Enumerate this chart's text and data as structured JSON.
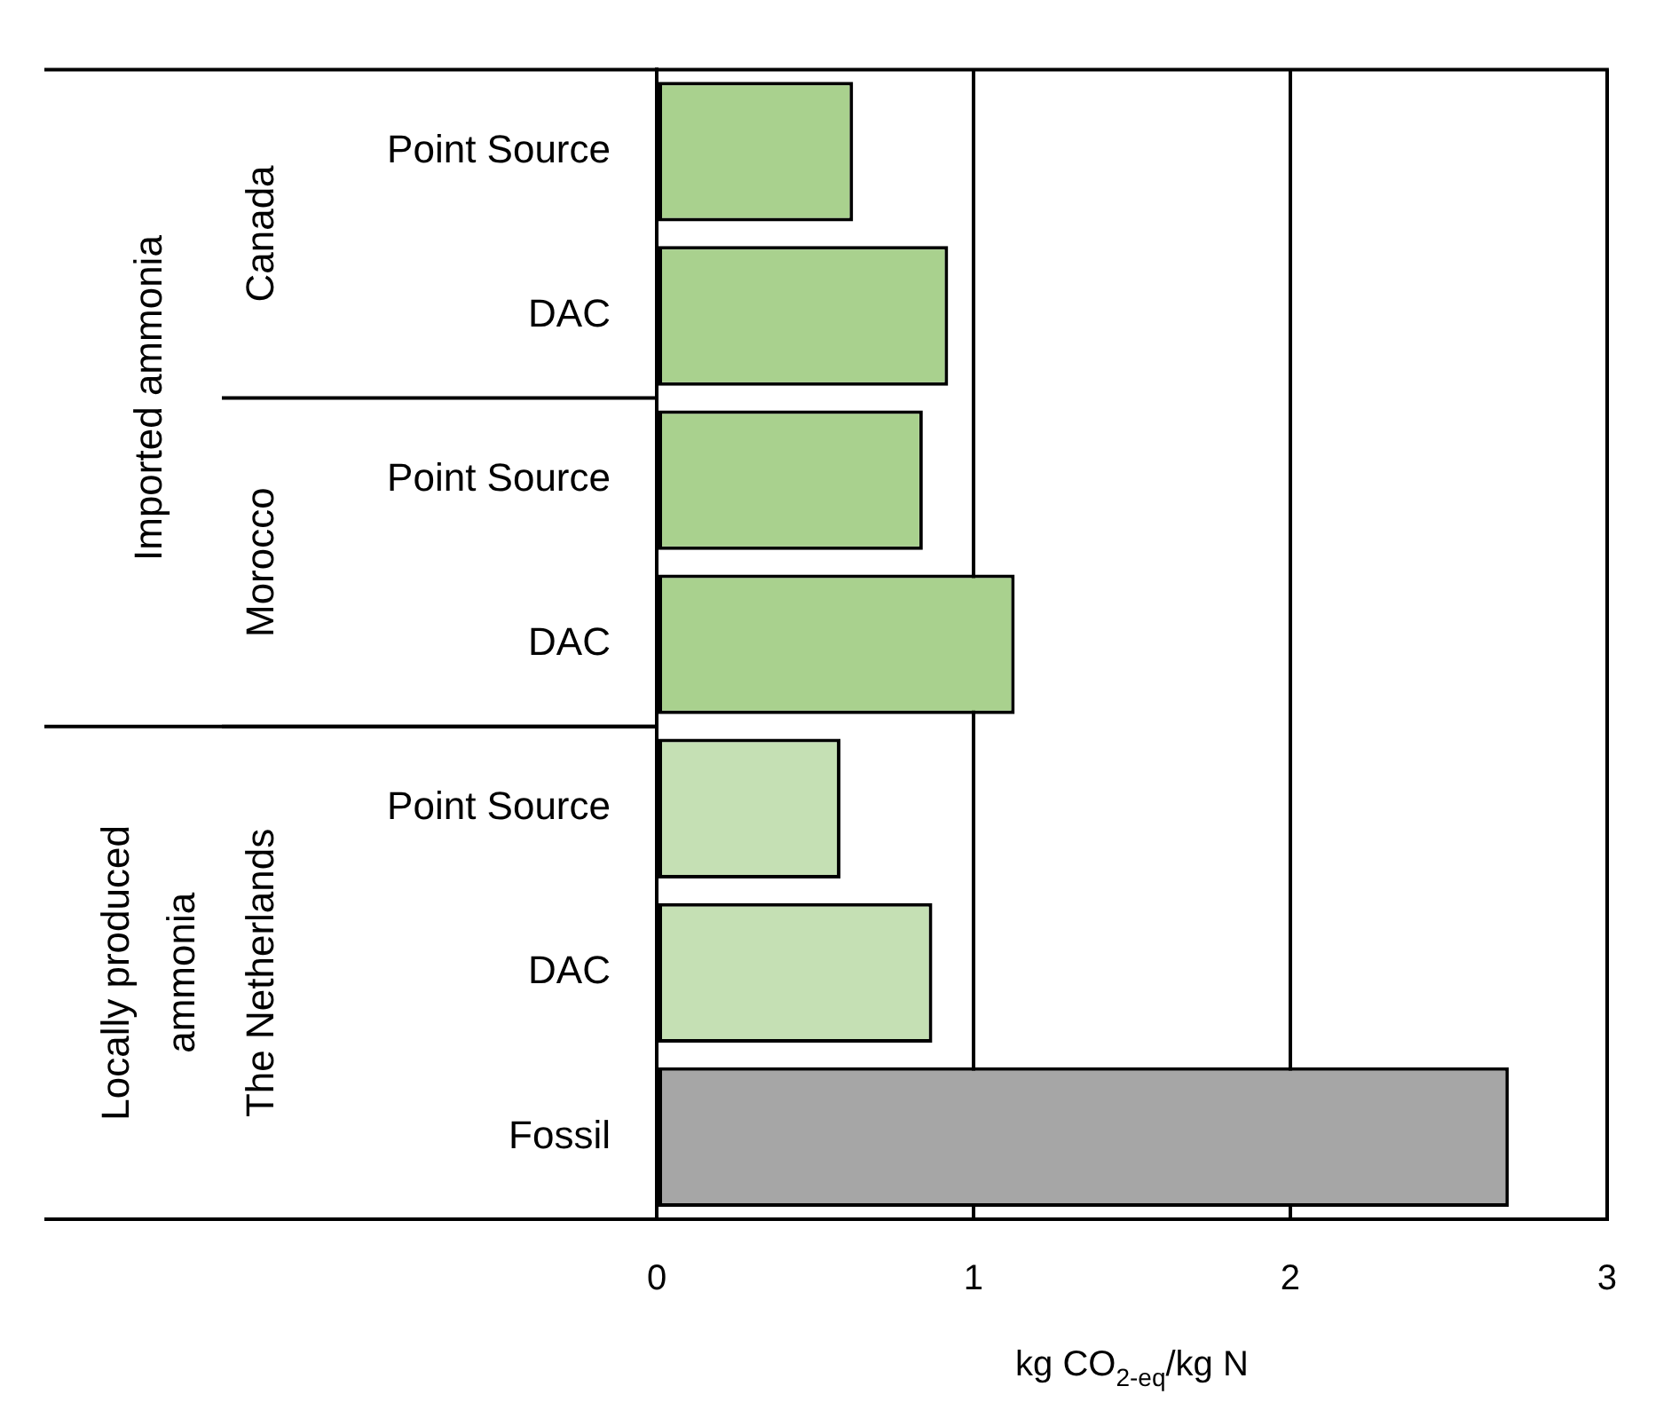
{
  "chart_data": {
    "type": "bar",
    "orientation": "horizontal",
    "categories": [
      "Point Source",
      "DAC",
      "Point Source",
      "DAC",
      "Point Source",
      "DAC",
      "Fossil"
    ],
    "values": [
      0.62,
      0.92,
      0.84,
      1.13,
      0.58,
      0.87,
      2.69
    ],
    "colors": [
      "#a9d18e",
      "#a9d18e",
      "#a9d18e",
      "#a9d18e",
      "#c5e0b4",
      "#c5e0b4",
      "#a6a6a6"
    ],
    "xlim": [
      0,
      3
    ],
    "xticks": [
      0,
      1,
      2,
      3
    ],
    "grid": "x",
    "legend": false,
    "xlabel": "kg CO$_{2-eq}$/kg N",
    "annotations": [
      "Imported ammonia",
      "Canada",
      "Morocco",
      "Locally produced ammonia",
      "The Netherlands"
    ]
  }
}
